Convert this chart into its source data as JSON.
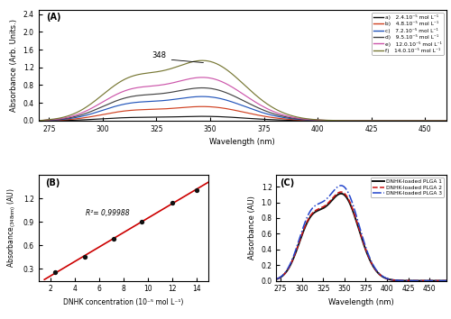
{
  "panel_A": {
    "title": "(A)",
    "xlabel": "Wavelength (nm)",
    "ylabel": "Absorbance (Arb. Units.)",
    "xlim": [
      270,
      460
    ],
    "ylim": [
      0.0,
      2.5
    ],
    "yticks": [
      0.0,
      0.4,
      0.8,
      1.2,
      1.6,
      2.0,
      2.4
    ],
    "peak_label": "348",
    "peak_x": 348,
    "peak_y_top": 1.32,
    "curves": [
      {
        "label": "a)   2.4.10⁻⁵ mol L⁻¹",
        "color": "#111111",
        "peak": 0.095,
        "ls": "-"
      },
      {
        "label": "b)   4.8.10⁻⁵ mol L⁻¹",
        "color": "#d04020",
        "peak": 0.31,
        "ls": "-"
      },
      {
        "label": "c)   7.2.10⁻⁵ mol L⁻¹",
        "color": "#2255bb",
        "peak": 0.53,
        "ls": "-"
      },
      {
        "label": "d)   9.5.10⁻⁵ mol L⁻¹",
        "color": "#444444",
        "peak": 0.72,
        "ls": "-"
      },
      {
        "label": "e)   12.0.10⁻⁵ mol L⁻¹",
        "color": "#cc55aa",
        "peak": 0.95,
        "ls": "-"
      },
      {
        "label": "f)   14.0.10⁻⁵ mol L⁻¹",
        "color": "#777733",
        "peak": 1.32,
        "ls": "-"
      }
    ]
  },
  "panel_B": {
    "title": "(B)",
    "xlabel": "DNHK concentration (10⁻⁵ mol L⁻¹)",
    "ylabel": "Absorbance ₍₃₄₈ⁿ₎ (AU)",
    "xlim": [
      1,
      15
    ],
    "ylim": [
      0.15,
      1.5
    ],
    "xticks": [
      2,
      4,
      6,
      8,
      10,
      12,
      14
    ],
    "yticks": [
      0.3,
      0.6,
      0.9,
      1.2
    ],
    "r2_text": "R²= 0,99988",
    "points_x": [
      2.4,
      4.8,
      7.2,
      9.5,
      12.0,
      14.0
    ],
    "points_y": [
      0.255,
      0.46,
      0.685,
      0.905,
      1.14,
      1.31
    ],
    "line_x_start": 1.5,
    "line_x_end": 15.0,
    "line_color": "#cc0000",
    "point_color": "#111111"
  },
  "panel_C": {
    "title": "(C)",
    "xlabel": "Wavelength (nm)",
    "ylabel": "Absorbance (AU)",
    "xlim": [
      270,
      470
    ],
    "ylim": [
      0.0,
      1.35
    ],
    "yticks": [
      0.0,
      0.2,
      0.4,
      0.6,
      0.8,
      1.0,
      1.2
    ],
    "curves": [
      {
        "label": "DNHK-loaded PLGA 1",
        "color": "#111111",
        "linestyle": "-",
        "lw": 1.4,
        "peak": 1.08
      },
      {
        "label": "DNHK-loaded PLGA 2",
        "color": "#cc1111",
        "linestyle": "--",
        "lw": 1.1,
        "peak": 1.1
      },
      {
        "label": "DNHK-loaded PLGA 3",
        "color": "#2244cc",
        "linestyle": "-.",
        "lw": 1.1,
        "peak": 1.18
      }
    ]
  },
  "figure_background": "#ffffff"
}
